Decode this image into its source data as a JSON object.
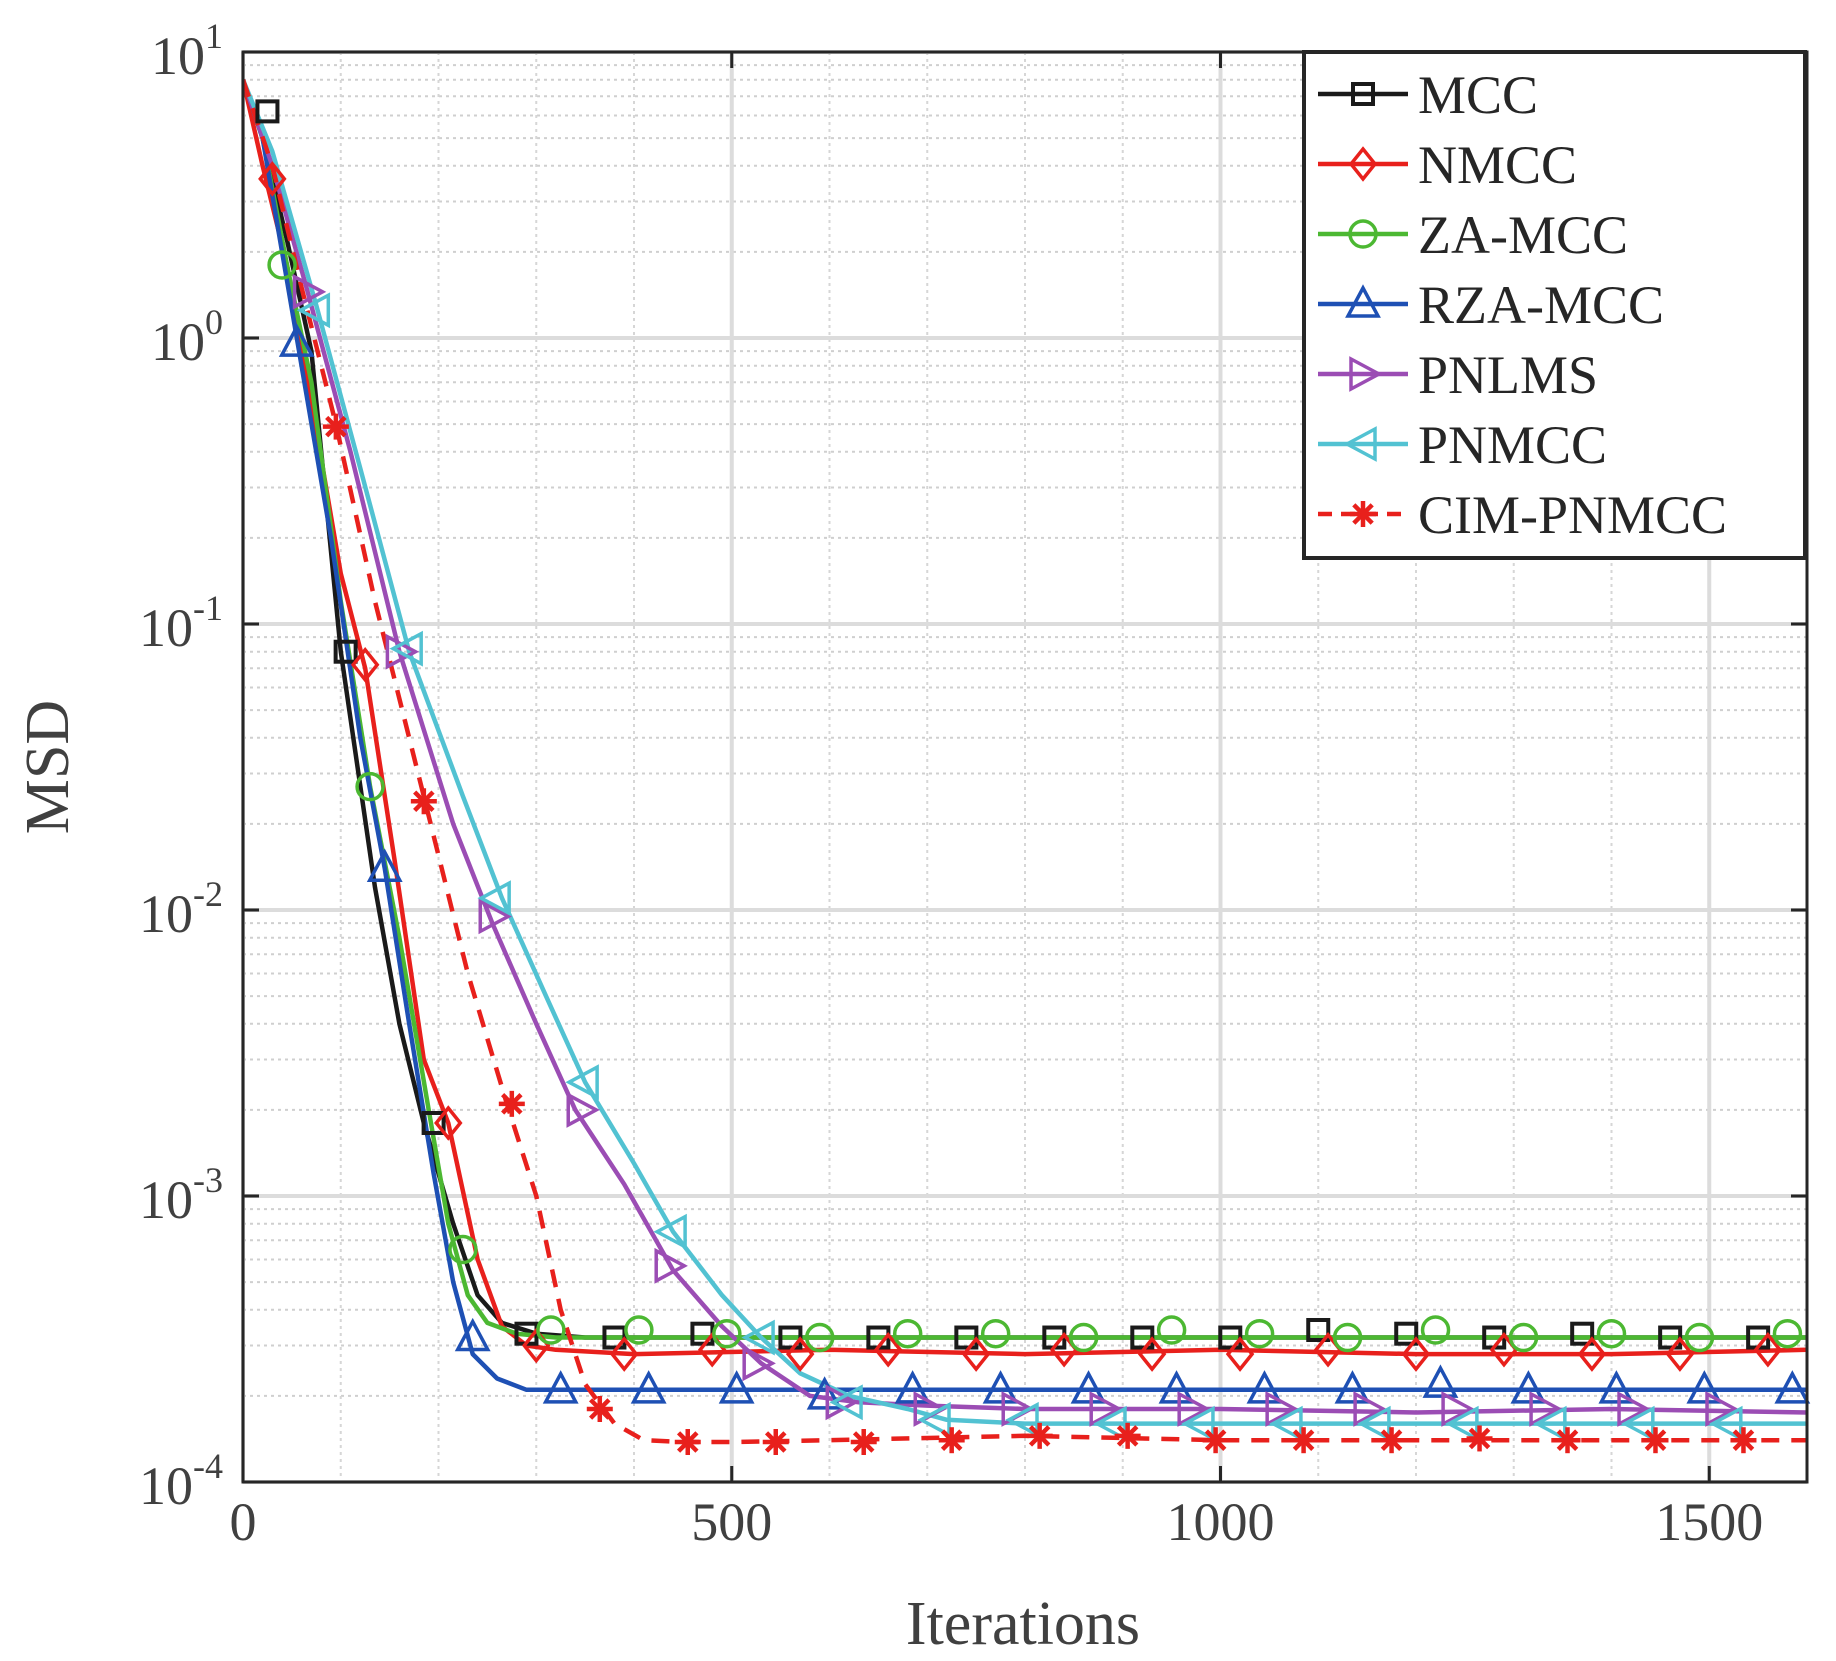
{
  "chart_data": {
    "type": "line",
    "xlabel": "Iterations",
    "ylabel": "MSD",
    "xlim": [
      0,
      1600
    ],
    "ylim": [
      0.0001,
      10
    ],
    "yscale": "log",
    "grid": true,
    "minor_grid": true,
    "legend_position": "top-right",
    "x_ticks": [
      {
        "value": 0,
        "label": "0"
      },
      {
        "value": 500,
        "label": "500"
      },
      {
        "value": 1000,
        "label": "1000"
      },
      {
        "value": 1500,
        "label": "1500"
      }
    ],
    "y_ticks": [
      {
        "value": 10,
        "base": "10",
        "exp": "1"
      },
      {
        "value": 1,
        "base": "10",
        "exp": "0"
      },
      {
        "value": 0.1,
        "base": "10",
        "exp": "-1"
      },
      {
        "value": 0.01,
        "base": "10",
        "exp": "-2"
      },
      {
        "value": 0.001,
        "base": "10",
        "exp": "-3"
      },
      {
        "value": 0.0001,
        "base": "10",
        "exp": "-4"
      }
    ],
    "series": [
      {
        "name": "MCC",
        "color": "#1a1a1a",
        "marker": "square",
        "dash": false,
        "x": [
          0,
          20,
          45,
          70,
          100,
          135,
          160,
          185,
          215,
          240,
          265,
          300,
          350,
          450,
          600,
          800,
          1000,
          1200,
          1400,
          1600
        ],
        "y": [
          8,
          5,
          2.2,
          0.9,
          0.08,
          0.012,
          0.004,
          0.0018,
          0.0008,
          0.00045,
          0.00036,
          0.00033,
          0.00032,
          0.00032,
          0.00032,
          0.00032,
          0.00032,
          0.00032,
          0.00032,
          0.00032
        ],
        "marker_x": [
          25,
          105,
          195,
          290,
          380,
          470,
          560,
          650,
          740,
          830,
          920,
          1010,
          1100,
          1190,
          1280,
          1370,
          1460,
          1550
        ],
        "marker_y": [
          6.2,
          0.08,
          0.0018,
          0.00033,
          0.00032,
          0.00033,
          0.00032,
          0.00032,
          0.00032,
          0.00032,
          0.00032,
          0.00032,
          0.00034,
          0.00033,
          0.00032,
          0.00033,
          0.00032,
          0.00032
        ]
      },
      {
        "name": "NMCC",
        "color": "#e8201c",
        "marker": "diamond",
        "dash": false,
        "x": [
          0,
          20,
          45,
          70,
          100,
          125,
          155,
          185,
          210,
          240,
          265,
          290,
          320,
          400,
          600,
          800,
          1000,
          1200,
          1400,
          1600
        ],
        "y": [
          8,
          4,
          1.8,
          0.6,
          0.15,
          0.07,
          0.015,
          0.003,
          0.0018,
          0.0006,
          0.00035,
          0.0003,
          0.00029,
          0.00028,
          0.00029,
          0.00028,
          0.00029,
          0.00028,
          0.00028,
          0.00029
        ],
        "marker_x": [
          30,
          125,
          210,
          300,
          390,
          480,
          570,
          660,
          750,
          840,
          930,
          1020,
          1110,
          1200,
          1290,
          1380,
          1470,
          1560
        ],
        "marker_y": [
          3.6,
          0.072,
          0.0018,
          0.0003,
          0.00028,
          0.00029,
          0.00028,
          0.00029,
          0.00028,
          0.00029,
          0.00028,
          0.00028,
          0.00029,
          0.00028,
          0.00029,
          0.00028,
          0.00028,
          0.00029
        ]
      },
      {
        "name": "ZA-MCC",
        "color": "#4cb832",
        "marker": "circle",
        "dash": false,
        "x": [
          0,
          20,
          45,
          70,
          100,
          130,
          160,
          190,
          210,
          230,
          250,
          280,
          320,
          400,
          600,
          800,
          1000,
          1200,
          1400,
          1600
        ],
        "y": [
          8,
          5,
          1.8,
          0.7,
          0.12,
          0.027,
          0.008,
          0.002,
          0.0008,
          0.00045,
          0.00036,
          0.00033,
          0.00032,
          0.00032,
          0.00032,
          0.00032,
          0.00032,
          0.00032,
          0.00032,
          0.00032
        ],
        "marker_x": [
          40,
          130,
          225,
          315,
          405,
          495,
          590,
          680,
          770,
          860,
          950,
          1040,
          1130,
          1220,
          1310,
          1400,
          1490,
          1580
        ],
        "marker_y": [
          1.8,
          0.027,
          0.00065,
          0.00034,
          0.00034,
          0.00033,
          0.00032,
          0.00033,
          0.00033,
          0.00032,
          0.00034,
          0.00033,
          0.00032,
          0.00034,
          0.00032,
          0.00033,
          0.00032,
          0.00033
        ]
      },
      {
        "name": "RZA-MCC",
        "color": "#1e50b4",
        "marker": "triangle-up",
        "dash": false,
        "x": [
          0,
          20,
          55,
          90,
          120,
          145,
          170,
          195,
          215,
          235,
          260,
          290,
          330,
          400,
          600,
          800,
          1000,
          1200,
          1400,
          1600
        ],
        "y": [
          8,
          5,
          1.0,
          0.2,
          0.04,
          0.014,
          0.004,
          0.0012,
          0.0005,
          0.00028,
          0.00023,
          0.00021,
          0.00021,
          0.00021,
          0.00021,
          0.00021,
          0.00021,
          0.00021,
          0.00021,
          0.00021
        ],
        "marker_x": [
          55,
          145,
          235,
          325,
          415,
          505,
          595,
          685,
          775,
          865,
          955,
          1045,
          1135,
          1225,
          1315,
          1405,
          1495,
          1585
        ],
        "marker_y": [
          0.96,
          0.014,
          0.00032,
          0.00021,
          0.00021,
          0.00021,
          0.0002,
          0.00021,
          0.00021,
          0.00021,
          0.00021,
          0.00021,
          0.00021,
          0.00022,
          0.00021,
          0.00021,
          0.00021,
          0.00021
        ]
      },
      {
        "name": "PNLMS",
        "color": "#9b4db4",
        "marker": "triangle-right",
        "dash": false,
        "x": [
          0,
          30,
          65,
          110,
          160,
          215,
          255,
          300,
          340,
          390,
          440,
          490,
          530,
          580,
          630,
          700,
          800,
          1000,
          1200,
          1400,
          1600
        ],
        "y": [
          8,
          4,
          1.5,
          0.4,
          0.08,
          0.02,
          0.009,
          0.004,
          0.002,
          0.0011,
          0.00055,
          0.00035,
          0.00026,
          0.0002,
          0.00019,
          0.000185,
          0.00018,
          0.00018,
          0.000175,
          0.00018,
          0.000175
        ],
        "marker_x": [
          65,
          160,
          255,
          345,
          435,
          525,
          610,
          700,
          790,
          880,
          970,
          1060,
          1150,
          1240,
          1330,
          1420,
          1510
        ],
        "marker_y": [
          1.45,
          0.08,
          0.0095,
          0.002,
          0.00057,
          0.00026,
          0.00019,
          0.00018,
          0.00018,
          0.00018,
          0.00018,
          0.00018,
          0.00018,
          0.00018,
          0.00018,
          0.00018,
          0.00018
        ]
      },
      {
        "name": "PNMCC",
        "color": "#52c2d2",
        "marker": "triangle-left",
        "dash": false,
        "x": [
          0,
          30,
          75,
          120,
          170,
          225,
          265,
          310,
          350,
          400,
          440,
          490,
          530,
          570,
          620,
          680,
          720,
          800,
          1000,
          1200,
          1400,
          1600
        ],
        "y": [
          8,
          4.5,
          1.3,
          0.35,
          0.08,
          0.025,
          0.011,
          0.005,
          0.0025,
          0.0013,
          0.00075,
          0.00045,
          0.00032,
          0.00024,
          0.0002,
          0.00018,
          0.000165,
          0.00016,
          0.00016,
          0.00016,
          0.00016,
          0.00016
        ],
        "marker_x": [
          75,
          170,
          260,
          350,
          440,
          530,
          620,
          710,
          800,
          890,
          980,
          1070,
          1160,
          1250,
          1340,
          1430,
          1520
        ],
        "marker_y": [
          1.25,
          0.082,
          0.011,
          0.0025,
          0.00075,
          0.00032,
          0.00019,
          0.000165,
          0.000165,
          0.00016,
          0.00016,
          0.00016,
          0.00016,
          0.00016,
          0.00016,
          0.00016,
          0.00016
        ]
      },
      {
        "name": "CIM-PNMCC",
        "color": "#e8201c",
        "marker": "asterisk",
        "dash": true,
        "x": [
          0,
          30,
          60,
          95,
          135,
          185,
          230,
          270,
          300,
          325,
          350,
          380,
          410,
          450,
          500,
          600,
          800,
          1000,
          1200,
          1400,
          1600
        ],
        "y": [
          8,
          4,
          1.5,
          0.5,
          0.12,
          0.025,
          0.006,
          0.0021,
          0.001,
          0.0004,
          0.00022,
          0.00016,
          0.00014,
          0.000138,
          0.000138,
          0.00014,
          0.000145,
          0.00014,
          0.00014,
          0.00014,
          0.00014
        ],
        "marker_x": [
          95,
          185,
          275,
          365,
          455,
          545,
          635,
          725,
          815,
          905,
          995,
          1085,
          1175,
          1265,
          1355,
          1445,
          1535
        ],
        "marker_y": [
          0.49,
          0.024,
          0.0021,
          0.00018,
          0.000138,
          0.000138,
          0.000138,
          0.00014,
          0.000145,
          0.000145,
          0.00014,
          0.00014,
          0.00014,
          0.000142,
          0.00014,
          0.00014,
          0.00014
        ]
      }
    ]
  }
}
